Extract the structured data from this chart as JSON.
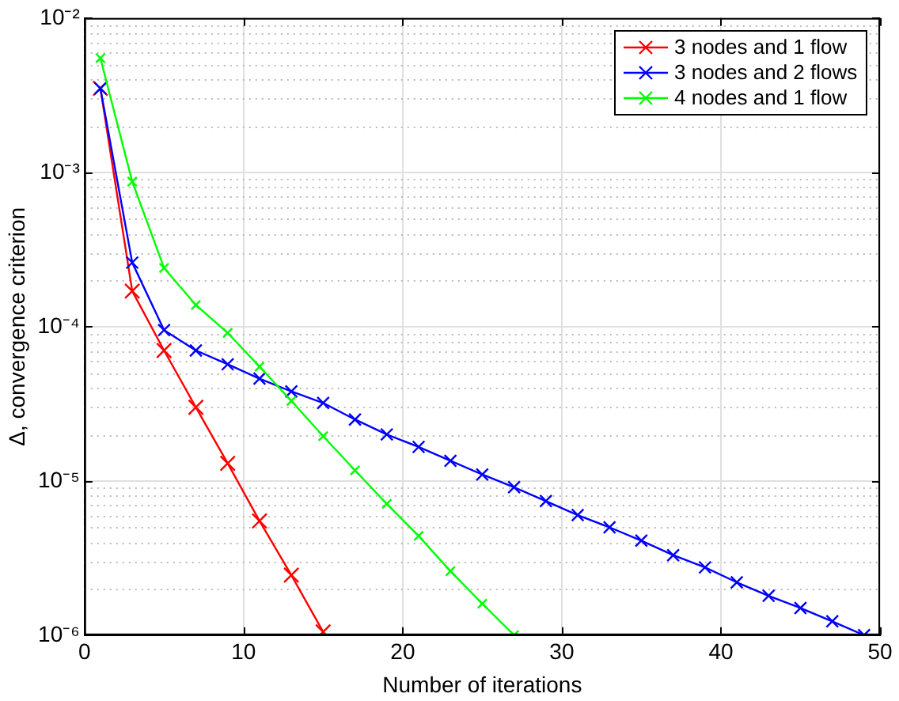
{
  "chart_data": {
    "type": "line",
    "xlabel": "Number of iterations",
    "ylabel": "Δ, convergence criterion",
    "log": "y",
    "grid": true,
    "legend": "top right",
    "marker": "cross",
    "line_style": "solid",
    "xlim": [
      0,
      50
    ],
    "xticks": [
      0,
      10,
      20,
      30,
      40,
      50
    ],
    "ylim": [
      1e-06,
      0.01
    ],
    "yticks": [
      {
        "value": 1e-06,
        "label": "10⁻⁶"
      },
      {
        "value": 1e-05,
        "label": "10⁻⁵"
      },
      {
        "value": 0.0001,
        "label": "10⁻⁴"
      },
      {
        "value": 0.001,
        "label": "10⁻³"
      },
      {
        "value": 0.01,
        "label": "10⁻²"
      }
    ],
    "series": [
      {
        "name": "3 nodes and 1 flow",
        "color": "#ff0000",
        "x": [
          1,
          3,
          5,
          7,
          9,
          11,
          13,
          15
        ],
        "values": [
          0.0035,
          0.00017,
          7e-05,
          3e-05,
          1.3e-05,
          5.5e-06,
          2.45e-06,
          1.05e-06
        ]
      },
      {
        "name": "3 nodes and 2 flows",
        "color": "#0000ff",
        "x": [
          1,
          3,
          5,
          7,
          9,
          11,
          13,
          15,
          17,
          19,
          21,
          23,
          25,
          27,
          29,
          31,
          33,
          35,
          37,
          39,
          41,
          43,
          45,
          47,
          49
        ],
        "values": [
          0.0035,
          0.00026,
          9.5e-05,
          7e-05,
          5.7e-05,
          4.6e-05,
          3.8e-05,
          3.2e-05,
          2.5e-05,
          2e-05,
          1.66e-05,
          1.35e-05,
          1.1e-05,
          9.1e-06,
          7.4e-06,
          6e-06,
          5e-06,
          4.1e-06,
          3.3e-06,
          2.75e-06,
          2.2e-06,
          1.8e-06,
          1.5e-06,
          1.23e-06,
          1e-06
        ]
      },
      {
        "name": "4 nodes and 1 flow",
        "color": "#00ff00",
        "x": [
          1,
          3,
          5,
          7,
          9,
          11,
          13,
          15,
          17,
          19,
          21,
          23,
          25,
          27
        ],
        "values": [
          0.0055,
          0.00087,
          0.00024,
          0.000138,
          9.1e-05,
          5.5e-05,
          3.3e-05,
          1.95e-05,
          1.17e-05,
          7.1e-06,
          4.4e-06,
          2.6e-06,
          1.6e-06,
          1e-06
        ]
      }
    ]
  }
}
